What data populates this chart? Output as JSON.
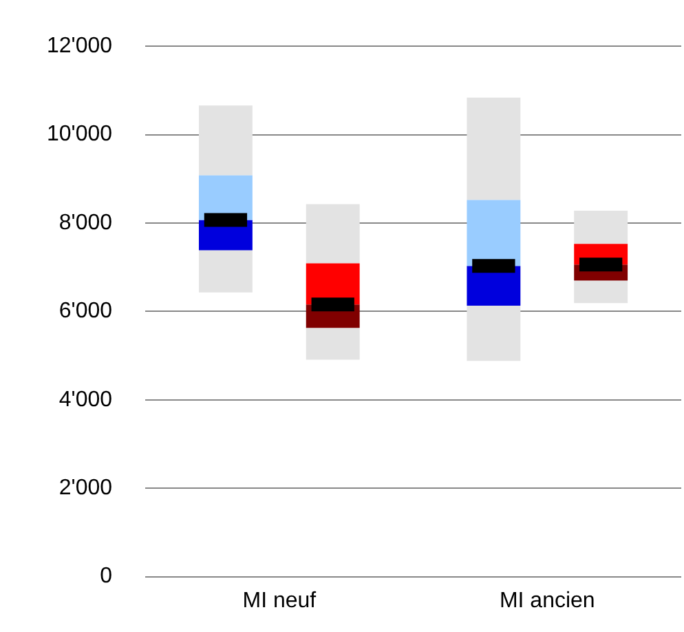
{
  "chart_data": {
    "type": "box",
    "categories": [
      "MI neuf",
      "MI ancien"
    ],
    "series": [
      {
        "color": "#99ccff",
        "colors": [
          "#0000dd",
          "#0000dd"
        ],
        "boxes": [
          {
            "low": 6430,
            "q1": 7385,
            "median": 8070,
            "q3": 9080,
            "high": 10660
          },
          {
            "low": 4880,
            "q1": 6130,
            "median": 7030,
            "q3": 8520,
            "high": 10840
          }
        ]
      },
      {
        "color": "#ff0000",
        "colors": [
          "#800000",
          "#800000"
        ],
        "boxes": [
          {
            "low": 4910,
            "q1": 5630,
            "median": 6160,
            "q3": 7090,
            "high": 8430
          },
          {
            "low": 6190,
            "q1": 6700,
            "median": 7060,
            "q3": 7530,
            "high": 8280
          }
        ]
      }
    ],
    "ylim": [
      0,
      12000
    ],
    "yticks": [
      {
        "value": 0,
        "label": "0"
      },
      {
        "value": 2000,
        "label": "2'000"
      },
      {
        "value": 4000,
        "label": "4'000"
      },
      {
        "value": 6000,
        "label": "6'000"
      },
      {
        "value": 8000,
        "label": "8'000"
      },
      {
        "value": 10000,
        "label": "10'000"
      },
      {
        "value": 12000,
        "label": "12'000"
      }
    ],
    "grid": "y",
    "legend": false
  }
}
